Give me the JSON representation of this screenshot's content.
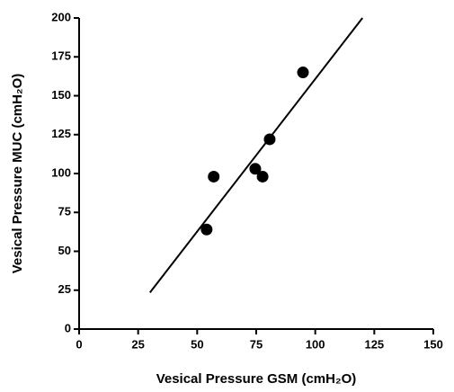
{
  "chart_data": {
    "type": "scatter",
    "x_label": "Vesical Pressure GSM (cmH₂O)",
    "y_label": "Vesical Pressure MUC (cmH₂O)",
    "xlim": [
      0,
      150
    ],
    "xticks": [
      0,
      25,
      50,
      75,
      100,
      125,
      150
    ],
    "ylim": [
      0,
      200
    ],
    "yticks": [
      0,
      25,
      50,
      75,
      100,
      125,
      150,
      175,
      200
    ],
    "series": [
      {
        "type": "scatter",
        "color": "#000000",
        "x": [
          54,
          57,
          74.6,
          77.7,
          80.7,
          94.8
        ],
        "values": [
          64,
          98,
          103,
          98,
          122,
          165
        ]
      },
      {
        "type": "line",
        "color": "#000000",
        "x": [
          30,
          120
        ],
        "values": [
          23.5,
          200
        ]
      }
    ]
  }
}
